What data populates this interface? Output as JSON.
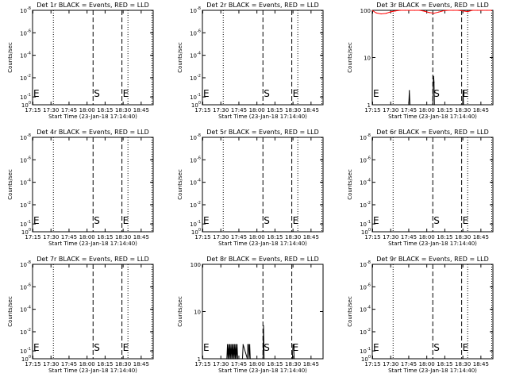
{
  "figure": {
    "xlabel": "Start Time (23-Jan-18 17:14:40)",
    "ylabel": "Counts/sec",
    "xticks": [
      "17:15",
      "17:30",
      "17:45",
      "18:00",
      "18:15",
      "18:30",
      "18:45"
    ],
    "start_label": "S",
    "end_label": "E",
    "begin_label": "E"
  },
  "colors": {
    "events": "#000000",
    "lld": "#ff0000"
  },
  "chart_data": [
    {
      "type": "line",
      "title": "Det 1r BLACK = Events, RED = LLD",
      "yscale": "log",
      "ylim": [
        1,
        1e-08
      ],
      "ylim_note": "degenerate (no counts)",
      "yticks": [
        {
          "m": "10",
          "e": "-8"
        },
        {
          "m": "10",
          "e": "-6"
        },
        {
          "m": "10",
          "e": "-4"
        },
        {
          "m": "10",
          "e": "-2"
        },
        {
          "m": "10",
          "e": "-1"
        },
        {
          "m": "10",
          "e": "0"
        }
      ],
      "ytick_pos": [
        0,
        0.238,
        0.476,
        0.714,
        0.917,
        1
      ],
      "grid": false,
      "vlines": {
        "dotted": [
          "17:32",
          "18:34",
          "18:54"
        ],
        "dashed": [
          "18:05",
          "18:29"
        ]
      },
      "series": [
        {
          "name": "Events",
          "x": [],
          "values": []
        },
        {
          "name": "LLD",
          "x": [],
          "values": []
        }
      ]
    },
    {
      "type": "line",
      "title": "Det 2r BLACK = Events, RED = LLD",
      "yscale": "log",
      "ylim": [
        1,
        1e-08
      ],
      "yticks": [
        {
          "m": "10",
          "e": "-8"
        },
        {
          "m": "10",
          "e": "-6"
        },
        {
          "m": "10",
          "e": "-4"
        },
        {
          "m": "10",
          "e": "-2"
        },
        {
          "m": "10",
          "e": "-1"
        },
        {
          "m": "10",
          "e": "0"
        }
      ],
      "ytick_pos": [
        0,
        0.238,
        0.476,
        0.714,
        0.917,
        1
      ],
      "grid": false,
      "vlines": {
        "dotted": [
          "17:32",
          "18:34",
          "18:54"
        ],
        "dashed": [
          "18:05",
          "18:29"
        ]
      },
      "series": [
        {
          "name": "Events",
          "x": [],
          "values": []
        },
        {
          "name": "LLD",
          "x": [],
          "values": []
        }
      ]
    },
    {
      "type": "line",
      "title": "Det 3r BLACK = Events, RED = LLD",
      "yscale": "log",
      "ylim": [
        1,
        100
      ],
      "yticks": [
        {
          "m": "1",
          "e": ""
        },
        {
          "m": "10",
          "e": ""
        },
        {
          "m": "100",
          "e": ""
        }
      ],
      "ytick_pos": [
        1,
        0.5,
        0
      ],
      "grid": false,
      "vlines": {
        "dotted": [
          "17:32",
          "18:34",
          "18:54"
        ],
        "dashed": [
          "18:05",
          "18:29"
        ]
      },
      "series": [
        {
          "name": "Events",
          "x": [
            "17:45",
            "17:45:30",
            "17:46",
            "18:05",
            "18:05:20",
            "18:05:40",
            "18:06",
            "18:06:20",
            "18:29:50",
            "18:30:10",
            "18:30:30"
          ],
          "values": [
            1,
            2,
            1,
            1,
            3,
            4,
            3,
            1,
            1,
            2,
            1
          ]
        },
        {
          "name": "LLD",
          "x": [
            "17:15",
            "17:18",
            "17:22",
            "17:26",
            "17:30",
            "17:34",
            "17:38",
            "17:42",
            "17:46",
            "17:50",
            "17:54",
            "17:58",
            "18:02",
            "18:06",
            "18:10",
            "18:14",
            "18:18",
            "18:22",
            "18:26",
            "18:30",
            "18:34",
            "18:38",
            "18:42",
            "18:46",
            "18:50",
            "18:54"
          ],
          "values": [
            98,
            88,
            84,
            86,
            93,
            97,
            100,
            100,
            100,
            100,
            100,
            96,
            90,
            87,
            92,
            98,
            100,
            100,
            100,
            97,
            94,
            100,
            100,
            100,
            100,
            100
          ]
        }
      ]
    },
    {
      "type": "line",
      "title": "Det 4r BLACK = Events, RED = LLD",
      "yscale": "log",
      "ylim": [
        1,
        1e-08
      ],
      "yticks": [
        {
          "m": "10",
          "e": "-8"
        },
        {
          "m": "10",
          "e": "-6"
        },
        {
          "m": "10",
          "e": "-4"
        },
        {
          "m": "10",
          "e": "-2"
        },
        {
          "m": "10",
          "e": "-1"
        },
        {
          "m": "10",
          "e": "0"
        }
      ],
      "ytick_pos": [
        0,
        0.238,
        0.476,
        0.714,
        0.917,
        1
      ],
      "grid": false,
      "vlines": {
        "dotted": [
          "17:32",
          "18:34",
          "18:54"
        ],
        "dashed": [
          "18:05",
          "18:29"
        ]
      },
      "series": [
        {
          "name": "Events",
          "x": [],
          "values": []
        },
        {
          "name": "LLD",
          "x": [],
          "values": []
        }
      ]
    },
    {
      "type": "line",
      "title": "Det 5r BLACK = Events, RED = LLD",
      "yscale": "log",
      "ylim": [
        1,
        1e-08
      ],
      "yticks": [
        {
          "m": "10",
          "e": "-8"
        },
        {
          "m": "10",
          "e": "-6"
        },
        {
          "m": "10",
          "e": "-4"
        },
        {
          "m": "10",
          "e": "-2"
        },
        {
          "m": "10",
          "e": "-1"
        },
        {
          "m": "10",
          "e": "0"
        }
      ],
      "ytick_pos": [
        0,
        0.238,
        0.476,
        0.714,
        0.917,
        1
      ],
      "grid": false,
      "vlines": {
        "dotted": [
          "17:32",
          "18:34",
          "18:54"
        ],
        "dashed": [
          "18:05",
          "18:29"
        ]
      },
      "series": [
        {
          "name": "Events",
          "x": [],
          "values": []
        },
        {
          "name": "LLD",
          "x": [],
          "values": []
        }
      ]
    },
    {
      "type": "line",
      "title": "Det 6r BLACK = Events, RED = LLD",
      "yscale": "log",
      "ylim": [
        1,
        1e-08
      ],
      "yticks": [
        {
          "m": "10",
          "e": "-8"
        },
        {
          "m": "10",
          "e": "-6"
        },
        {
          "m": "10",
          "e": "-4"
        },
        {
          "m": "10",
          "e": "-2"
        },
        {
          "m": "10",
          "e": "-1"
        },
        {
          "m": "10",
          "e": "0"
        }
      ],
      "ytick_pos": [
        0,
        0.238,
        0.476,
        0.714,
        0.917,
        1
      ],
      "grid": false,
      "vlines": {
        "dotted": [
          "17:32",
          "18:34",
          "18:54"
        ],
        "dashed": [
          "18:05",
          "18:29"
        ]
      },
      "series": [
        {
          "name": "Events",
          "x": [],
          "values": []
        },
        {
          "name": "LLD",
          "x": [],
          "values": []
        }
      ]
    },
    {
      "type": "line",
      "title": "Det 7r BLACK = Events, RED = LLD",
      "yscale": "log",
      "ylim": [
        1,
        1e-08
      ],
      "yticks": [
        {
          "m": "10",
          "e": "-8"
        },
        {
          "m": "10",
          "e": "-6"
        },
        {
          "m": "10",
          "e": "-4"
        },
        {
          "m": "10",
          "e": "-2"
        },
        {
          "m": "10",
          "e": "-1"
        },
        {
          "m": "10",
          "e": "0"
        }
      ],
      "ytick_pos": [
        0,
        0.238,
        0.476,
        0.714,
        0.917,
        1
      ],
      "grid": false,
      "vlines": {
        "dotted": [
          "17:32",
          "18:34",
          "18:54"
        ],
        "dashed": [
          "18:05",
          "18:29"
        ]
      },
      "series": [
        {
          "name": "Events",
          "x": [],
          "values": []
        },
        {
          "name": "LLD",
          "x": [],
          "values": []
        }
      ]
    },
    {
      "type": "line",
      "title": "Det 8r BLACK = Events, RED = LLD",
      "yscale": "log",
      "ylim": [
        1,
        100
      ],
      "yticks": [
        {
          "m": "1",
          "e": ""
        },
        {
          "m": "10",
          "e": ""
        },
        {
          "m": "100",
          "e": ""
        }
      ],
      "ytick_pos": [
        1,
        0.5,
        0
      ],
      "grid": false,
      "vlines": {
        "dotted": [],
        "dashed": [
          "18:05",
          "18:29"
        ]
      },
      "series": [
        {
          "name": "Events",
          "x": [
            "17:35",
            "17:35:30",
            "17:36",
            "17:36:30",
            "17:37",
            "17:37:30",
            "17:38",
            "17:38:30",
            "17:39",
            "17:39:30",
            "17:40",
            "17:40:30",
            "17:41",
            "17:41:30",
            "17:42",
            "17:42:30",
            "17:43",
            "17:43:30",
            "17:44",
            "17:48",
            "17:48:30",
            "17:52",
            "17:52:30",
            "17:53",
            "17:53:30",
            "17:54",
            "17:54:30",
            "18:05",
            "18:05:30",
            "18:06",
            "18:29:30",
            "18:30",
            "18:30:30",
            "18:31"
          ],
          "values": [
            1,
            2,
            1,
            2,
            1,
            2,
            1,
            2,
            1,
            2,
            1,
            2,
            1,
            2,
            1,
            2,
            1,
            2,
            1,
            1,
            2,
            1,
            2,
            2,
            1,
            2,
            1,
            1,
            5,
            1,
            1,
            2,
            2,
            1
          ]
        }
      ]
    },
    {
      "type": "line",
      "title": "Det 9r BLACK = Events, RED = LLD",
      "yscale": "log",
      "ylim": [
        1,
        1e-08
      ],
      "yticks": [
        {
          "m": "10",
          "e": "-8"
        },
        {
          "m": "10",
          "e": "-6"
        },
        {
          "m": "10",
          "e": "-4"
        },
        {
          "m": "10",
          "e": "-2"
        },
        {
          "m": "10",
          "e": "-1"
        },
        {
          "m": "10",
          "e": "0"
        }
      ],
      "ytick_pos": [
        0,
        0.238,
        0.476,
        0.714,
        0.917,
        1
      ],
      "grid": false,
      "vlines": {
        "dotted": [
          "17:32",
          "18:34",
          "18:54"
        ],
        "dashed": [
          "18:05",
          "18:29"
        ]
      },
      "series": [
        {
          "name": "Events",
          "x": [],
          "values": []
        },
        {
          "name": "LLD",
          "x": [],
          "values": []
        }
      ]
    }
  ]
}
